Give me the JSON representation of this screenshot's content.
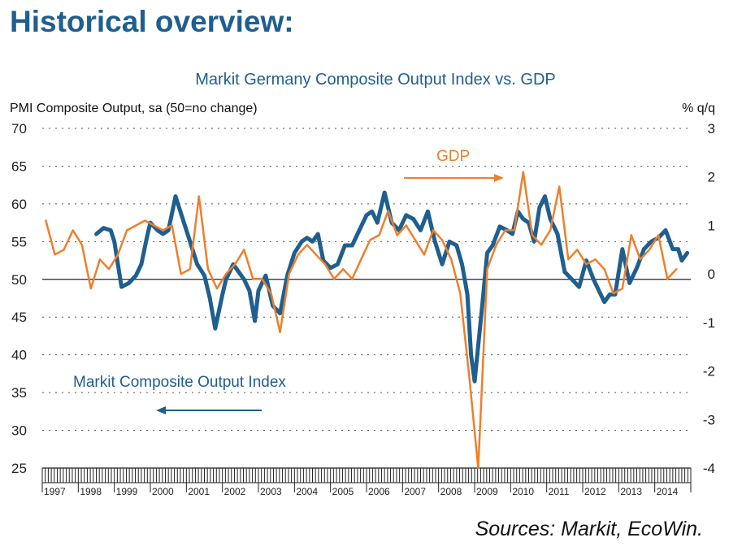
{
  "page": {
    "heading": "Historical overview:",
    "source": "Sources: Markit, EcoWin."
  },
  "chart_data": {
    "type": "line",
    "title": "Markit Germany Composite Output Index vs. GDP",
    "left_axis_label": "PMI Composite Output, sa (50=no change)",
    "right_axis_label": "% q/q",
    "ylim_left": [
      25,
      70
    ],
    "yticks_left": [
      "70",
      "65",
      "60",
      "55",
      "50",
      "45",
      "40",
      "35",
      "30",
      "25"
    ],
    "ylim_right": [
      -4,
      3
    ],
    "yticks_right": [
      "3",
      "2",
      "1",
      "0",
      "-1",
      "-2",
      "-3",
      "-4"
    ],
    "xlim": [
      1997.0,
      2015.0
    ],
    "x_categories": [
      "1997",
      "1998",
      "1999",
      "2000",
      "2001",
      "2002",
      "2003",
      "2004",
      "2005",
      "2006",
      "2007",
      "2008",
      "2009",
      "2010",
      "2011",
      "2012",
      "2013",
      "2014"
    ],
    "grid": "horizontal dotted",
    "annotations": [
      {
        "text": "GDP",
        "arrow": "right"
      },
      {
        "text": "Markit Composite Output Index",
        "arrow": "left"
      }
    ],
    "colors": {
      "pmi": "#1f5f8f",
      "gdp": "#ee7f2d",
      "text": "#1f5f8f",
      "zero_line": "#222222"
    },
    "series": [
      {
        "name": "Markit Composite Output Index",
        "axis": "left",
        "x": [
          1998.5,
          1998.7,
          1998.9,
          1999.0,
          1999.2,
          1999.4,
          1999.6,
          1999.75,
          1999.9,
          2000.0,
          2000.1,
          2000.2,
          2000.35,
          2000.5,
          2000.7,
          2000.9,
          2001.1,
          2001.3,
          2001.5,
          2001.65,
          2001.8,
          2002.0,
          2002.1,
          2002.25,
          2002.3,
          2002.45,
          2002.6,
          2002.75,
          2002.9,
          2003.0,
          2003.2,
          2003.4,
          2003.6,
          2003.8,
          2004.0,
          2004.2,
          2004.35,
          2004.5,
          2004.65,
          2004.8,
          2005.0,
          2005.2,
          2005.4,
          2005.6,
          2005.8,
          2006.0,
          2006.15,
          2006.3,
          2006.5,
          2006.7,
          2006.9,
          2007.1,
          2007.3,
          2007.5,
          2007.7,
          2007.9,
          2008.1,
          2008.3,
          2008.5,
          2008.65,
          2008.8,
          2008.9,
          2009.0,
          2009.2,
          2009.35,
          2009.5,
          2009.7,
          2009.9,
          2010.05,
          2010.2,
          2010.35,
          2010.5,
          2010.65,
          2010.8,
          2010.95,
          2011.1,
          2011.3,
          2011.5,
          2011.7,
          2011.9,
          2012.1,
          2012.3,
          2012.5,
          2012.6,
          2012.75,
          2012.9,
          2013.1,
          2013.3,
          2013.5,
          2013.7,
          2013.9,
          2014.1,
          2014.3,
          2014.5,
          2014.65,
          2014.75,
          2014.9
        ],
        "values": [
          56.0,
          56.8,
          56.5,
          55.0,
          49.0,
          49.5,
          50.5,
          52.0,
          55.5,
          57.5,
          57.0,
          56.5,
          56.0,
          56.5,
          61.0,
          58.0,
          55.0,
          52.0,
          50.5,
          47.5,
          43.5,
          48.0,
          50.0,
          51.5,
          52.0,
          51.0,
          50.0,
          48.5,
          44.5,
          48.5,
          50.5,
          46.5,
          45.5,
          50.5,
          53.5,
          55.0,
          55.5,
          55.0,
          56.0,
          52.5,
          51.5,
          52.0,
          54.5,
          54.5,
          56.5,
          58.5,
          59.0,
          57.5,
          61.5,
          57.5,
          56.5,
          58.5,
          58.0,
          56.5,
          59.0,
          55.0,
          52.0,
          55.0,
          54.5,
          52.0,
          48.0,
          40.0,
          36.5,
          46.0,
          53.5,
          54.5,
          57.0,
          56.5,
          56.0,
          59.0,
          58.0,
          57.5,
          55.0,
          59.5,
          61.0,
          58.0,
          56.0,
          51.0,
          50.0,
          49.0,
          52.5,
          50.0,
          48.0,
          47.0,
          48.0,
          48.0,
          54.0,
          49.5,
          51.5,
          54.0,
          55.0,
          55.5,
          56.5,
          54.0,
          54.0,
          52.5,
          53.5
        ]
      },
      {
        "name": "GDP",
        "axis": "right",
        "x": [
          1997.1,
          1997.35,
          1997.6,
          1997.85,
          1998.1,
          1998.35,
          1998.6,
          1998.85,
          1999.1,
          1999.35,
          1999.6,
          1999.85,
          2000.1,
          2000.35,
          2000.6,
          2000.85,
          2001.1,
          2001.35,
          2001.6,
          2001.85,
          2002.1,
          2002.35,
          2002.6,
          2002.85,
          2003.1,
          2003.35,
          2003.6,
          2003.85,
          2004.1,
          2004.35,
          2004.6,
          2004.85,
          2005.1,
          2005.35,
          2005.6,
          2005.85,
          2006.1,
          2006.35,
          2006.6,
          2006.85,
          2007.1,
          2007.35,
          2007.6,
          2007.85,
          2008.1,
          2008.35,
          2008.6,
          2008.85,
          2009.1,
          2009.35,
          2009.6,
          2009.85,
          2010.1,
          2010.35,
          2010.6,
          2010.85,
          2011.1,
          2011.35,
          2011.6,
          2011.85,
          2012.1,
          2012.35,
          2012.6,
          2012.85,
          2013.1,
          2013.35,
          2013.6,
          2013.85,
          2014.1,
          2014.35,
          2014.6
        ],
        "values": [
          1.1,
          0.4,
          0.5,
          0.9,
          0.6,
          -0.3,
          0.3,
          0.1,
          0.4,
          0.9,
          1.0,
          1.1,
          1.0,
          0.9,
          1.0,
          0.0,
          0.1,
          1.6,
          0.1,
          -0.3,
          0.0,
          0.2,
          0.5,
          -0.1,
          -0.1,
          -0.4,
          -1.2,
          0.0,
          0.4,
          0.6,
          0.4,
          0.2,
          -0.1,
          0.1,
          -0.1,
          0.3,
          0.7,
          0.8,
          1.3,
          0.8,
          1.0,
          0.7,
          0.4,
          0.9,
          0.7,
          0.3,
          -0.4,
          -2.1,
          -4.0,
          0.1,
          0.6,
          0.9,
          0.9,
          2.1,
          0.8,
          0.6,
          0.9,
          1.8,
          0.3,
          0.5,
          0.2,
          0.3,
          0.1,
          -0.4,
          -0.3,
          0.8,
          0.3,
          0.5,
          0.8,
          -0.1,
          0.1
        ]
      }
    ]
  }
}
